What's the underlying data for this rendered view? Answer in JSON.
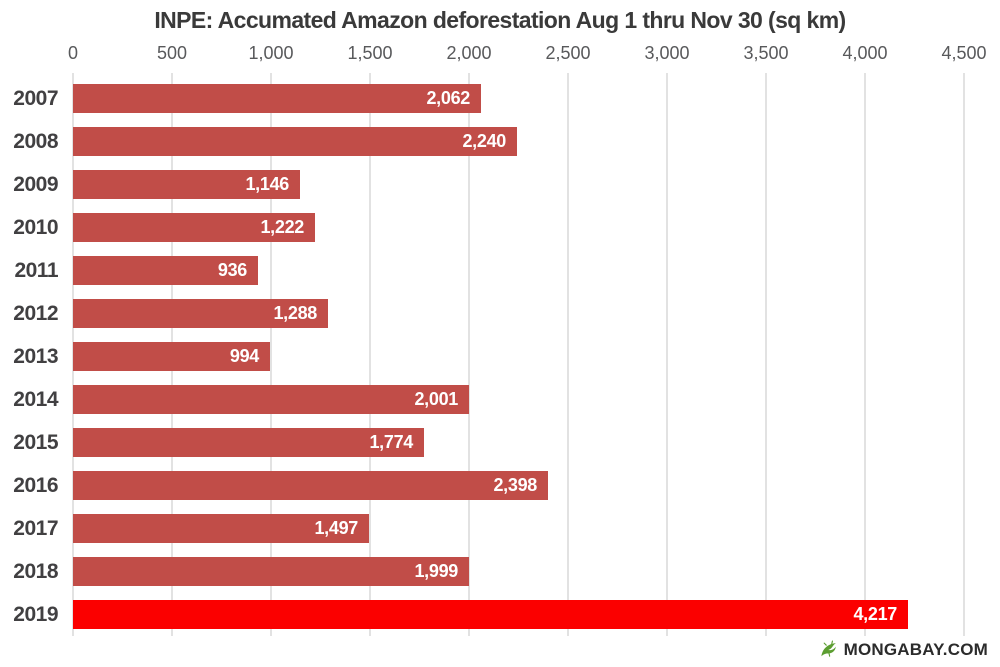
{
  "chart_data": {
    "type": "bar",
    "orientation": "horizontal",
    "title": "INPE: Accumated Amazon deforestation Aug 1 thru Nov 30 (sq km)",
    "xlabel": "",
    "ylabel": "",
    "xlim": [
      0,
      4500
    ],
    "grid": true,
    "tick_labels": [
      "0",
      "500",
      "1,000",
      "1,500",
      "2,000",
      "2,500",
      "3,000",
      "3,500",
      "4,000",
      "4,500"
    ],
    "tick_values": [
      0,
      500,
      1000,
      1500,
      2000,
      2500,
      3000,
      3500,
      4000,
      4500
    ],
    "categories": [
      "2007",
      "2008",
      "2009",
      "2010",
      "2011",
      "2012",
      "2013",
      "2014",
      "2015",
      "2016",
      "2017",
      "2018",
      "2019"
    ],
    "values": [
      2062,
      2240,
      1146,
      1222,
      936,
      1288,
      994,
      2001,
      1774,
      2398,
      1497,
      1999,
      4217
    ],
    "value_labels": [
      "2,062",
      "2,240",
      "1,146",
      "1,222",
      "936",
      "1,288",
      "994",
      "2,001",
      "1,774",
      "2,398",
      "1,497",
      "1,999",
      "4,217"
    ],
    "bar_color": "#c14d48",
    "highlight_color": "#fb0000",
    "highlight_index": 12,
    "legend": "none"
  },
  "branding": {
    "text": "MONGABAY.COM",
    "icon": "gecko-icon",
    "icon_color": "#5c9e31"
  }
}
